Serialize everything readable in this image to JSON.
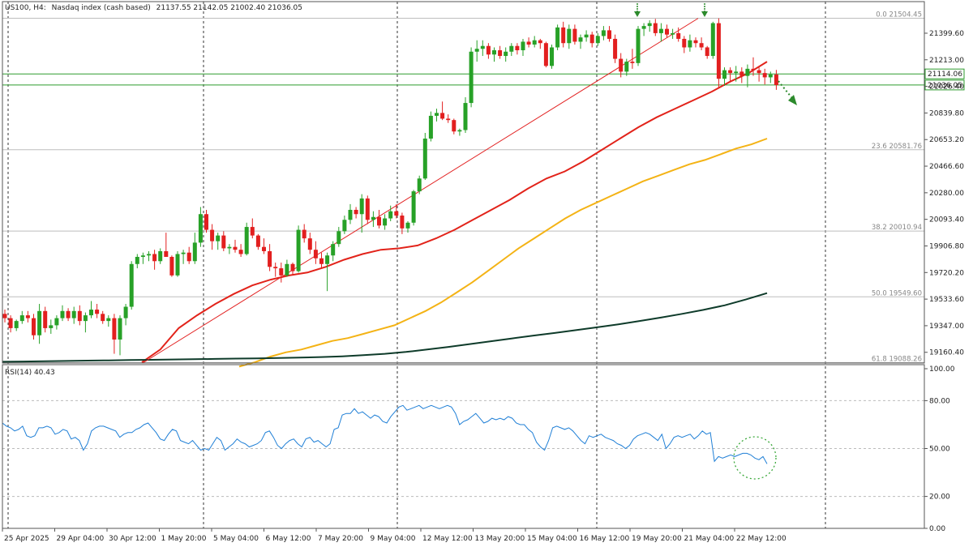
{
  "header": {
    "symbol": "US100, H4:",
    "name": "Nasdaq index (cash based)",
    "ohlc": "21137.55 21142.05 21002.40 21036.05"
  },
  "colors": {
    "bull": "#27a127",
    "bear": "#e21f1f",
    "ema_fast": "#e2231a",
    "ema_mid": "#f4b315",
    "ema_slow": "#0e3b2a",
    "rsi": "#1f7fd6",
    "level_line": "#2e9b2e",
    "fib": "#9a9a9a",
    "trend": "#e21f1f",
    "arrow": "#2c8a2c"
  },
  "icons": [
    "down-arrow-icon",
    "down-arrow-icon",
    "dotted-down-arrow-icon",
    "dotted-circle-icon"
  ],
  "chart_data": [
    {
      "type": "candlestick",
      "panel": "price",
      "ylim": [
        19085,
        21553
      ],
      "y_ticks": [
        "21399.60",
        "21213.00",
        "21026.40",
        "20839.80",
        "20653.20",
        "20466.60",
        "20280.00",
        "20093.40",
        "19906.80",
        "19720.20",
        "19533.60",
        "19347.00",
        "19160.40"
      ],
      "x_labels": [
        "25 Apr 2025",
        "29 Apr 04:00",
        "30 Apr 12:00",
        "1 May 20:00",
        "5 May 04:00",
        "6 May 12:00",
        "7 May 20:00",
        "9 May 04:00",
        "12 May 12:00",
        "13 May 20:00",
        "15 May 04:00",
        "16 May 12:00",
        "19 May 20:00",
        "21 May 04:00",
        "22 May 12:00"
      ],
      "horizontal_levels": [
        {
          "label": "21114.06",
          "value": 21114.06
        },
        {
          "label": "21036.05",
          "value": 21036.05
        }
      ],
      "fib_levels": [
        {
          "label": "0.0 21504.45",
          "value": 21504.45
        },
        {
          "label": "23.6 20581.76",
          "value": 20581.76
        },
        {
          "label": "38.2 20010.94",
          "value": 20010.94
        },
        {
          "label": "50.0 19549.60",
          "value": 19549.6
        },
        {
          "label": "61.8 19088.26",
          "value": 19088.26
        }
      ],
      "trendline": {
        "from": [
          0.0,
          19085
        ],
        "to": [
          107.0,
          21504
        ]
      },
      "candles": [
        [
          19430,
          19460,
          19370,
          19400
        ],
        [
          19400,
          19420,
          19300,
          19330
        ],
        [
          19330,
          19390,
          19310,
          19380
        ],
        [
          19380,
          19450,
          19360,
          19420
        ],
        [
          19420,
          19450,
          19370,
          19400
        ],
        [
          19400,
          19430,
          19250,
          19280
        ],
        [
          19280,
          19500,
          19220,
          19450
        ],
        [
          19450,
          19480,
          19300,
          19330
        ],
        [
          19330,
          19390,
          19290,
          19350
        ],
        [
          19350,
          19420,
          19320,
          19400
        ],
        [
          19400,
          19490,
          19380,
          19450
        ],
        [
          19450,
          19470,
          19380,
          19400
        ],
        [
          19400,
          19480,
          19360,
          19450
        ],
        [
          19450,
          19490,
          19350,
          19380
        ],
        [
          19380,
          19440,
          19300,
          19420
        ],
        [
          19420,
          19520,
          19400,
          19460
        ],
        [
          19460,
          19500,
          19400,
          19430
        ],
        [
          19430,
          19450,
          19360,
          19380
        ],
        [
          19380,
          19420,
          19340,
          19400
        ],
        [
          19400,
          19430,
          19150,
          19250
        ],
        [
          19250,
          19420,
          19140,
          19400
        ],
        [
          19400,
          19500,
          19350,
          19480
        ],
        [
          19480,
          19800,
          19460,
          19780
        ],
        [
          19780,
          19850,
          19750,
          19830
        ],
        [
          19830,
          19860,
          19780,
          19840
        ],
        [
          19840,
          19870,
          19800,
          19850
        ],
        [
          19850,
          19880,
          19740,
          19800
        ],
        [
          19800,
          19890,
          19780,
          19870
        ],
        [
          19870,
          20000,
          19850,
          19830
        ],
        [
          19830,
          19840,
          19690,
          19700
        ],
        [
          19700,
          19870,
          19690,
          19850
        ],
        [
          19850,
          19880,
          19780,
          19860
        ],
        [
          19860,
          19900,
          19780,
          19800
        ],
        [
          19800,
          20000,
          19780,
          19930
        ],
        [
          19930,
          20180,
          19900,
          20130
        ],
        [
          20130,
          20160,
          20000,
          20020
        ],
        [
          20020,
          20060,
          19880,
          19940
        ],
        [
          19940,
          20000,
          19880,
          19980
        ],
        [
          19980,
          20010,
          19870,
          19890
        ],
        [
          19890,
          19920,
          19850,
          19900
        ],
        [
          19900,
          19950,
          19860,
          19880
        ],
        [
          19880,
          19920,
          19830,
          19850
        ],
        [
          19850,
          20070,
          19840,
          20040
        ],
        [
          20040,
          20100,
          19960,
          19980
        ],
        [
          19980,
          19990,
          19880,
          19900
        ],
        [
          19900,
          19960,
          19850,
          19870
        ],
        [
          19870,
          19920,
          19730,
          19760
        ],
        [
          19760,
          19790,
          19690,
          19750
        ],
        [
          19750,
          19790,
          19650,
          19700
        ],
        [
          19700,
          19810,
          19690,
          19780
        ],
        [
          19780,
          19790,
          19700,
          19730
        ],
        [
          19730,
          20050,
          19720,
          20020
        ],
        [
          20020,
          20060,
          19930,
          19960
        ],
        [
          19960,
          20000,
          19850,
          19880
        ],
        [
          19880,
          19940,
          19780,
          19820
        ],
        [
          19820,
          19860,
          19750,
          19780
        ],
        [
          19780,
          19860,
          19590,
          19840
        ],
        [
          19840,
          19940,
          19800,
          19920
        ],
        [
          19920,
          20040,
          19900,
          20010
        ],
        [
          20010,
          20120,
          19990,
          20090
        ],
        [
          20090,
          20200,
          20060,
          20160
        ],
        [
          20160,
          20180,
          20100,
          20130
        ],
        [
          20130,
          20270,
          20000,
          20240
        ],
        [
          20240,
          20260,
          20060,
          20090
        ],
        [
          20090,
          20150,
          20040,
          20110
        ],
        [
          20110,
          20160,
          20030,
          20050
        ],
        [
          20050,
          20130,
          20020,
          20100
        ],
        [
          20100,
          20190,
          20080,
          20150
        ],
        [
          20150,
          20200,
          20100,
          20120
        ],
        [
          20120,
          20140,
          19990,
          20030
        ],
        [
          20030,
          20080,
          20000,
          20070
        ],
        [
          20070,
          20300,
          20050,
          20290
        ],
        [
          20290,
          20400,
          20270,
          20380
        ],
        [
          20380,
          20700,
          20370,
          20660
        ],
        [
          20660,
          20850,
          20640,
          20820
        ],
        [
          20820,
          20870,
          20780,
          20840
        ],
        [
          20840,
          20920,
          20790,
          20800
        ],
        [
          20800,
          20830,
          20770,
          20790
        ],
        [
          20790,
          20800,
          20690,
          20710
        ],
        [
          20710,
          20730,
          20680,
          20720
        ],
        [
          20720,
          20950,
          20700,
          20910
        ],
        [
          20910,
          21300,
          20880,
          21270
        ],
        [
          21270,
          21350,
          21200,
          21290
        ],
        [
          21290,
          21350,
          21240,
          21310
        ],
        [
          21310,
          21330,
          21220,
          21250
        ],
        [
          21250,
          21300,
          21200,
          21280
        ],
        [
          21280,
          21310,
          21220,
          21240
        ],
        [
          21240,
          21300,
          21200,
          21270
        ],
        [
          21270,
          21330,
          21240,
          21310
        ],
        [
          21310,
          21330,
          21250,
          21280
        ],
        [
          21280,
          21360,
          21240,
          21340
        ],
        [
          21340,
          21370,
          21300,
          21320
        ],
        [
          21320,
          21380,
          21300,
          21350
        ],
        [
          21350,
          21360,
          21290,
          21330
        ],
        [
          21330,
          21340,
          21160,
          21170
        ],
        [
          21170,
          21320,
          21150,
          21300
        ],
        [
          21300,
          21460,
          21280,
          21440
        ],
        [
          21440,
          21480,
          21300,
          21330
        ],
        [
          21330,
          21460,
          21290,
          21430
        ],
        [
          21430,
          21460,
          21320,
          21340
        ],
        [
          21340,
          21390,
          21290,
          21370
        ],
        [
          21370,
          21420,
          21340,
          21390
        ],
        [
          21390,
          21410,
          21300,
          21330
        ],
        [
          21330,
          21400,
          21310,
          21380
        ],
        [
          21380,
          21450,
          21350,
          21420
        ],
        [
          21420,
          21450,
          21340,
          21360
        ],
        [
          21360,
          21390,
          21190,
          21220
        ],
        [
          21220,
          21260,
          21090,
          21130
        ],
        [
          21130,
          21220,
          21100,
          21200
        ],
        [
          21200,
          21290,
          21150,
          21190
        ],
        [
          21190,
          21450,
          21170,
          21430
        ],
        [
          21430,
          21470,
          21380,
          21450
        ],
        [
          21450,
          21490,
          21410,
          21470
        ],
        [
          21470,
          21500,
          21380,
          21400
        ],
        [
          21400,
          21470,
          21340,
          21430
        ],
        [
          21430,
          21460,
          21370,
          21390
        ],
        [
          21390,
          21430,
          21360,
          21400
        ],
        [
          21400,
          21440,
          21340,
          21360
        ],
        [
          21360,
          21380,
          21260,
          21300
        ],
        [
          21300,
          21390,
          21270,
          21350
        ],
        [
          21350,
          21370,
          21300,
          21330
        ],
        [
          21330,
          21370,
          21280,
          21300
        ],
        [
          21300,
          21310,
          21220,
          21240
        ],
        [
          21240,
          21480,
          21220,
          21470
        ],
        [
          21470,
          21504,
          21020,
          21080
        ],
        [
          21080,
          21160,
          21030,
          21140
        ],
        [
          21140,
          21160,
          21060,
          21120
        ],
        [
          21120,
          21170,
          21060,
          21130
        ],
        [
          21130,
          21160,
          21050,
          21100
        ],
        [
          21100,
          21180,
          21020,
          21150
        ],
        [
          21150,
          21230,
          21100,
          21140
        ],
        [
          21140,
          21160,
          21060,
          21120
        ],
        [
          21120,
          21150,
          21040,
          21090
        ],
        [
          21090,
          21130,
          21050,
          21110
        ],
        [
          21110,
          21142,
          21002,
          21036
        ]
      ],
      "series": [
        {
          "kind": "ema_fast",
          "values": [
            19090,
            19180,
            19330,
            19420,
            19500,
            19570,
            19630,
            19670,
            19700,
            19720,
            19760,
            19810,
            19850,
            19880,
            19890,
            19910,
            19960,
            20020,
            20090,
            20160,
            20230,
            20310,
            20380,
            20430,
            20500,
            20580,
            20660,
            20740,
            20810,
            20870,
            20930,
            20990,
            21060,
            21120,
            21200
          ]
        },
        {
          "kind": "ema_mid",
          "values": [
            19060,
            19090,
            19130,
            19160,
            19180,
            19210,
            19240,
            19260,
            19290,
            19320,
            19350,
            19400,
            19450,
            19510,
            19580,
            19650,
            19730,
            19810,
            19890,
            19960,
            20030,
            20100,
            20160,
            20210,
            20260,
            20310,
            20360,
            20400,
            20440,
            20480,
            20510,
            20550,
            20590,
            20620,
            20660
          ]
        },
        {
          "kind": "ema_slow",
          "values": [
            19094,
            19096,
            19098,
            19100,
            19102,
            19104,
            19106,
            19108,
            19110,
            19112,
            19114,
            19116,
            19118,
            19120,
            19123,
            19127,
            19132,
            19140,
            19150,
            19163,
            19180,
            19198,
            19218,
            19238,
            19258,
            19278,
            19296,
            19316,
            19336,
            19357,
            19380,
            19404,
            19430,
            19458,
            19490,
            19531,
            19576
          ]
        }
      ]
    },
    {
      "type": "line",
      "panel": "rsi",
      "title": "RSI(14) 40.43",
      "ylim": [
        0,
        100
      ],
      "y_ticks": [
        "100.00",
        "80.00",
        "50.00",
        "20.00",
        "0.00"
      ],
      "levels": [
        80,
        50,
        20
      ],
      "values": [
        66,
        64,
        63,
        61,
        62,
        64,
        58,
        57,
        58,
        63,
        63,
        64,
        63,
        59,
        60,
        62,
        61,
        56,
        57,
        55,
        49,
        53,
        61,
        63,
        64,
        64,
        63,
        62,
        61,
        57,
        59,
        60,
        60,
        62,
        63,
        65,
        66,
        63,
        60,
        56,
        55,
        59,
        62,
        61,
        55,
        54,
        53,
        55,
        52,
        49,
        50,
        49,
        53,
        57,
        55,
        49,
        51,
        53,
        56,
        54,
        53,
        51,
        52,
        53,
        55,
        60,
        61,
        57,
        52,
        50,
        53,
        55,
        56,
        53,
        51,
        56,
        57,
        54,
        55,
        53,
        51,
        53,
        62,
        63,
        71,
        72,
        72,
        75,
        72,
        73,
        71,
        69,
        71,
        70,
        67,
        66,
        70,
        73,
        76,
        77,
        74,
        75,
        76,
        77,
        75,
        76,
        77,
        76,
        75,
        76,
        77,
        76,
        72,
        65,
        67,
        68,
        70,
        72,
        69,
        66,
        67,
        69,
        68,
        69,
        68,
        70,
        69,
        66,
        65,
        65,
        62,
        60,
        54,
        51,
        49,
        55,
        63,
        64,
        63,
        62,
        63,
        61,
        58,
        55,
        53,
        58,
        57,
        58,
        59,
        57,
        56,
        55,
        53,
        52,
        50,
        52,
        56,
        58,
        59,
        60,
        59,
        57,
        55,
        59,
        50,
        53,
        57,
        58,
        57,
        58,
        59,
        56,
        58,
        61,
        59,
        60,
        42,
        45,
        44,
        45,
        46,
        45,
        46,
        47,
        47,
        46,
        44,
        43,
        45,
        40.43
      ]
    }
  ]
}
